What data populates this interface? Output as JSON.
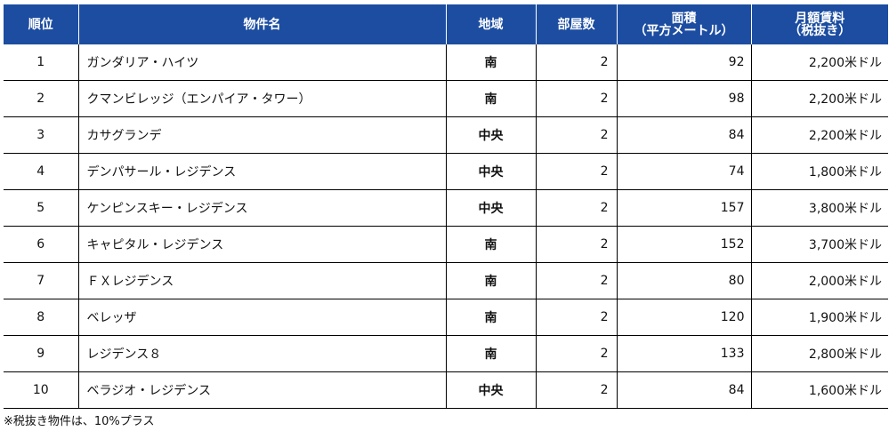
{
  "table": {
    "headers": {
      "rank": "順位",
      "name": "物件名",
      "region": "地域",
      "rooms": "部屋数",
      "area_line1": "面積",
      "area_line2": "（平方メートル）",
      "rent_line1": "月額賃料",
      "rent_line2": "（税抜き）"
    },
    "rows": [
      {
        "rank": "1",
        "name": "ガンダリア・ハイツ",
        "region": "南",
        "rooms": "2",
        "area": "92",
        "rent": "2,200米ドル"
      },
      {
        "rank": "2",
        "name": "クマンビレッジ（エンパイア・タワー）",
        "region": "南",
        "rooms": "2",
        "area": "98",
        "rent": "2,200米ドル"
      },
      {
        "rank": "3",
        "name": "カサグランデ",
        "region": "中央",
        "rooms": "2",
        "area": "84",
        "rent": "2,200米ドル"
      },
      {
        "rank": "4",
        "name": "デンパサール・レジデンス",
        "region": "中央",
        "rooms": "2",
        "area": "74",
        "rent": "1,800米ドル"
      },
      {
        "rank": "5",
        "name": "ケンピンスキー・レジデンス",
        "region": "中央",
        "rooms": "2",
        "area": "157",
        "rent": "3,800米ドル"
      },
      {
        "rank": "6",
        "name": "キャピタル・レジデンス",
        "region": "南",
        "rooms": "2",
        "area": "152",
        "rent": "3,700米ドル"
      },
      {
        "rank": "7",
        "name": "ＦＸレジデンス",
        "region": "南",
        "rooms": "2",
        "area": "80",
        "rent": "2,000米ドル"
      },
      {
        "rank": "8",
        "name": "ベレッザ",
        "region": "南",
        "rooms": "2",
        "area": "120",
        "rent": "1,900米ドル"
      },
      {
        "rank": "9",
        "name": "レジデンス８",
        "region": "南",
        "rooms": "2",
        "area": "133",
        "rent": "2,800米ドル"
      },
      {
        "rank": "10",
        "name": "ベラジオ・レジデンス",
        "region": "中央",
        "rooms": "2",
        "area": "84",
        "rent": "1,600米ドル"
      }
    ]
  },
  "footnote": "※税抜き物件は、10%プラス",
  "colors": {
    "header_bg": "#1c4da1",
    "header_text": "#ffffff",
    "row_border": "#000000"
  }
}
